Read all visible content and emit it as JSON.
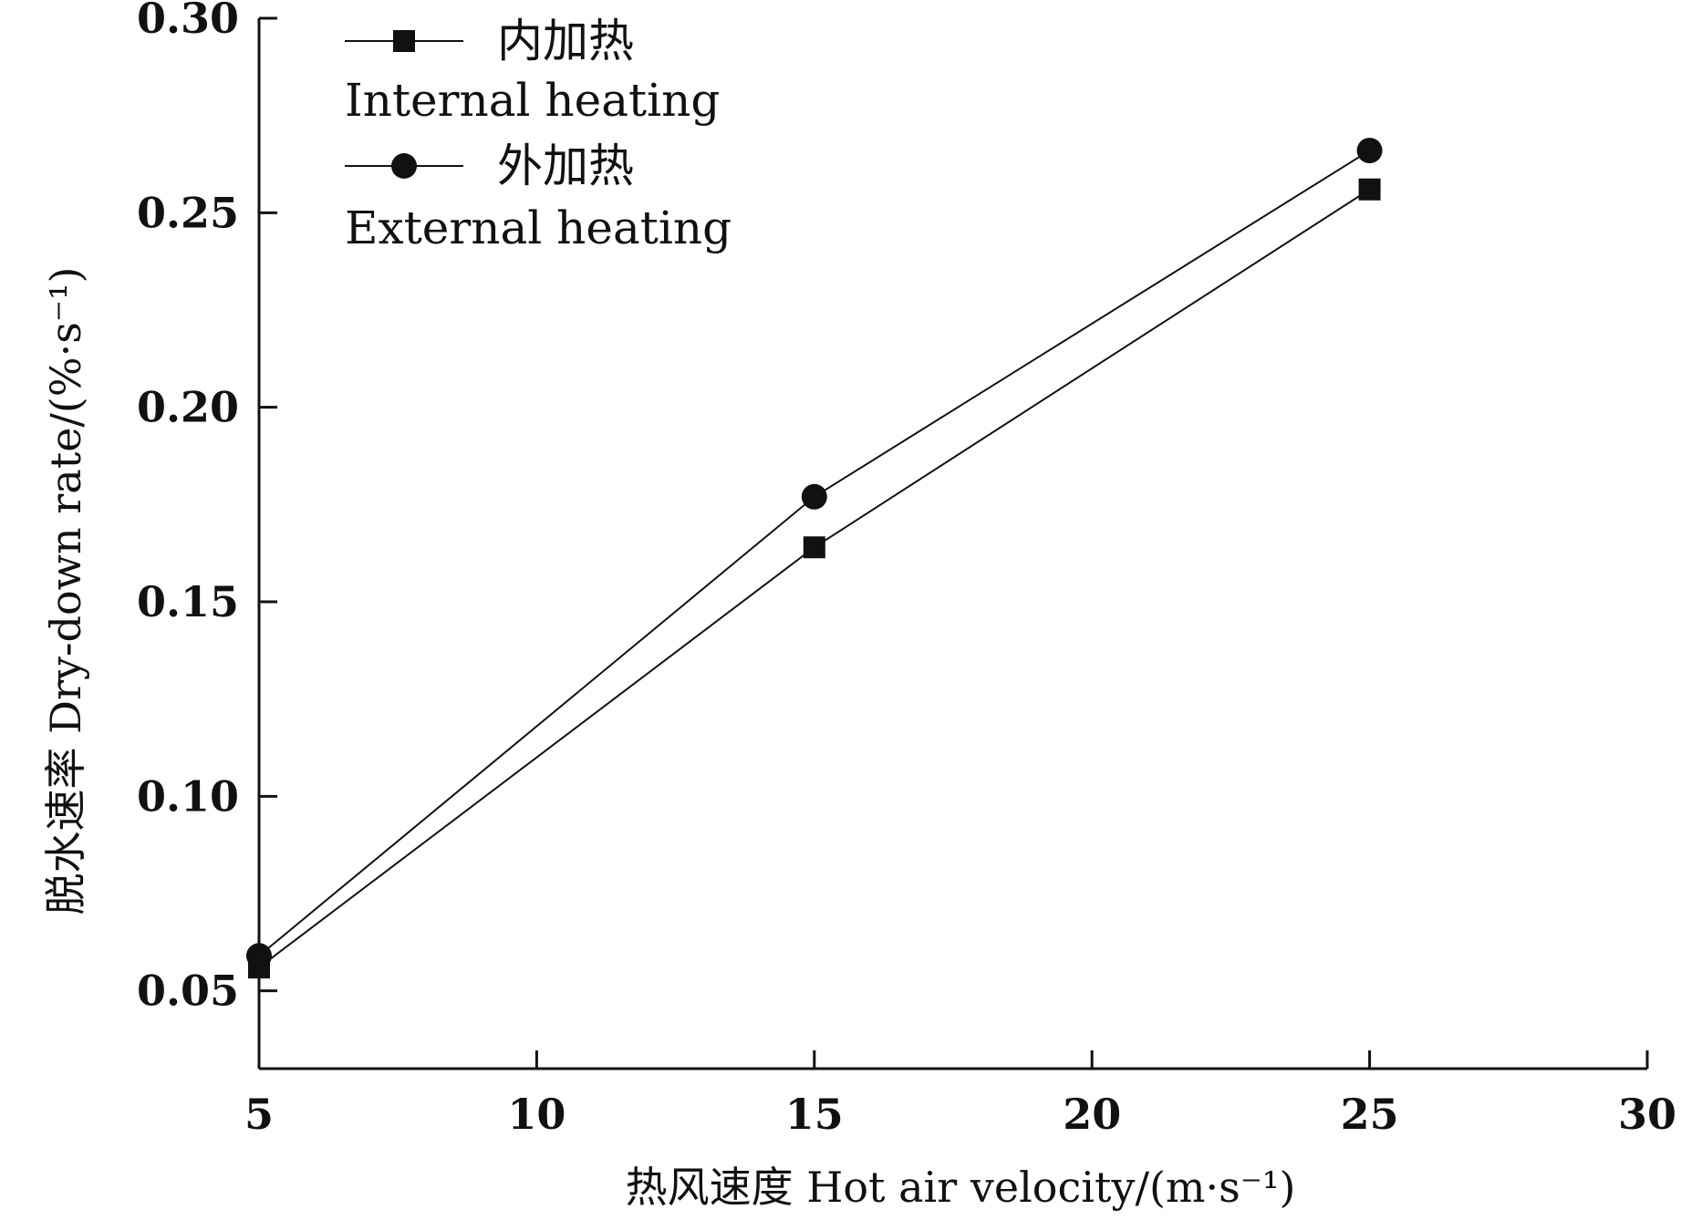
{
  "chart_data": {
    "type": "line",
    "xlabel": "热风速度 Hot air velocity/(m·s⁻¹)",
    "ylabel": "脱水速率 Dry-down rate/(%·s⁻¹)",
    "xlim": [
      5,
      30
    ],
    "ylim": [
      0.03,
      0.3
    ],
    "x_ticks": [
      5,
      10,
      15,
      20,
      25,
      30
    ],
    "y_ticks": [
      0.05,
      0.1,
      0.15,
      0.2,
      0.25,
      0.3
    ],
    "x_tick_labels": [
      "5",
      "10",
      "15",
      "20",
      "25",
      "30"
    ],
    "y_tick_labels": [
      "0.05",
      "0.10",
      "0.15",
      "0.20",
      "0.25",
      "0.30"
    ],
    "grid": false,
    "legend_position": "top-left",
    "series": [
      {
        "name_cn": "内加热",
        "name": "Internal heating",
        "marker": "square",
        "x": [
          5,
          15,
          25
        ],
        "y": [
          0.056,
          0.164,
          0.256
        ]
      },
      {
        "name_cn": "外加热",
        "name": "External heating",
        "marker": "circle",
        "x": [
          5,
          15,
          25
        ],
        "y": [
          0.059,
          0.177,
          0.266
        ]
      }
    ],
    "colors": {
      "ink": "#111111"
    }
  }
}
